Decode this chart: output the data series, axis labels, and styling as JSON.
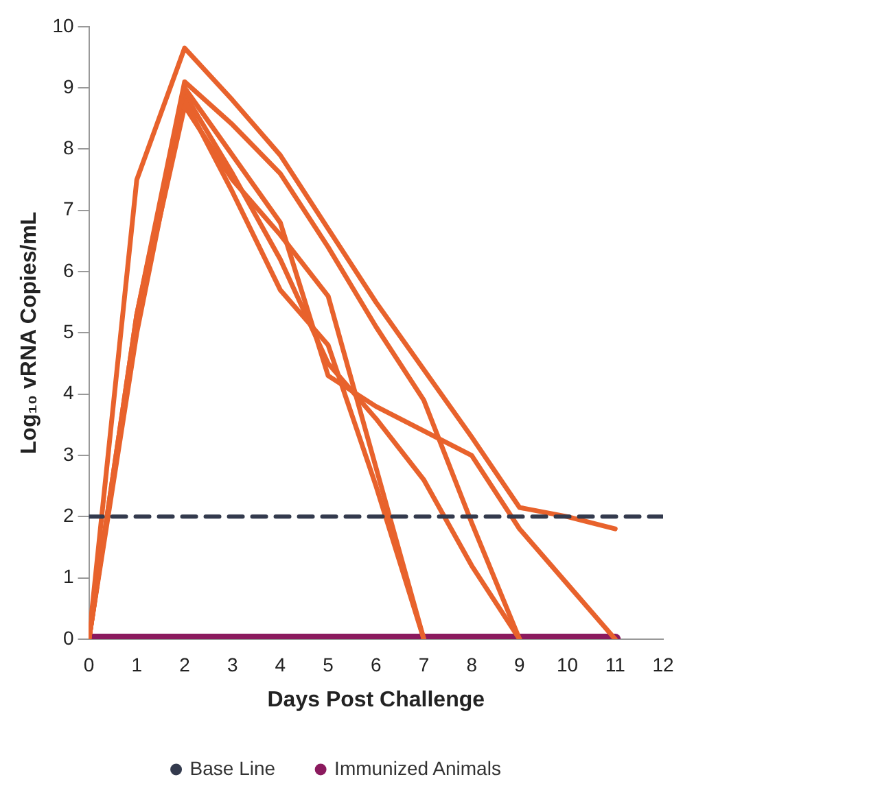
{
  "chart_data": {
    "type": "line",
    "xlabel": "Days Post Challenge",
    "ylabel": "Log₁₀ vRNA Copies/mL",
    "x": [
      0,
      1,
      2,
      3,
      4,
      5,
      6,
      7,
      8,
      9,
      10,
      11
    ],
    "xlim": [
      0,
      12
    ],
    "xticks": [
      0,
      1,
      2,
      3,
      4,
      5,
      6,
      7,
      8,
      9,
      10,
      11,
      12
    ],
    "ylim": [
      0,
      10
    ],
    "yticks": [
      0,
      1,
      2,
      3,
      4,
      5,
      6,
      7,
      8,
      9,
      10
    ],
    "grid": false,
    "legend": "bottom",
    "marker": "none",
    "series": [
      {
        "name": "Base Line",
        "color": "#333a4d",
        "x": [
          0,
          12
        ],
        "values": [
          2,
          2
        ],
        "line_style": "dashed"
      },
      {
        "name": "Immunized Animals",
        "color": "#8b1a5e",
        "x": [
          0,
          11
        ],
        "values": [
          0,
          0
        ]
      },
      {
        "color": "#e8622c",
        "values": [
          0,
          7.5,
          9.65,
          8.8,
          7.9,
          6.7,
          5.5,
          4.4,
          3.3,
          2.15,
          2.0,
          1.8
        ]
      },
      {
        "color": "#e8622c",
        "values": [
          0,
          5.3,
          9.1,
          8.4,
          7.6,
          6.4,
          5.1,
          3.9,
          1.9,
          0,
          null,
          null
        ]
      },
      {
        "color": "#e8622c",
        "values": [
          0,
          5.3,
          9.0,
          7.9,
          6.8,
          4.3,
          3.8,
          3.4,
          3.0,
          1.8,
          0.9,
          0
        ]
      },
      {
        "color": "#e8622c",
        "values": [
          0,
          5.2,
          8.8,
          7.3,
          5.7,
          4.8,
          2.5,
          0,
          null,
          null,
          null,
          null
        ]
      },
      {
        "color": "#e8622c",
        "values": [
          0,
          5.2,
          8.7,
          7.5,
          6.6,
          5.6,
          2.8,
          0,
          null,
          null,
          null,
          null
        ]
      },
      {
        "color": "#e8622c",
        "values": [
          0,
          5.0,
          8.9,
          7.6,
          6.2,
          4.5,
          3.6,
          2.6,
          1.2,
          0,
          null,
          null
        ]
      }
    ]
  }
}
